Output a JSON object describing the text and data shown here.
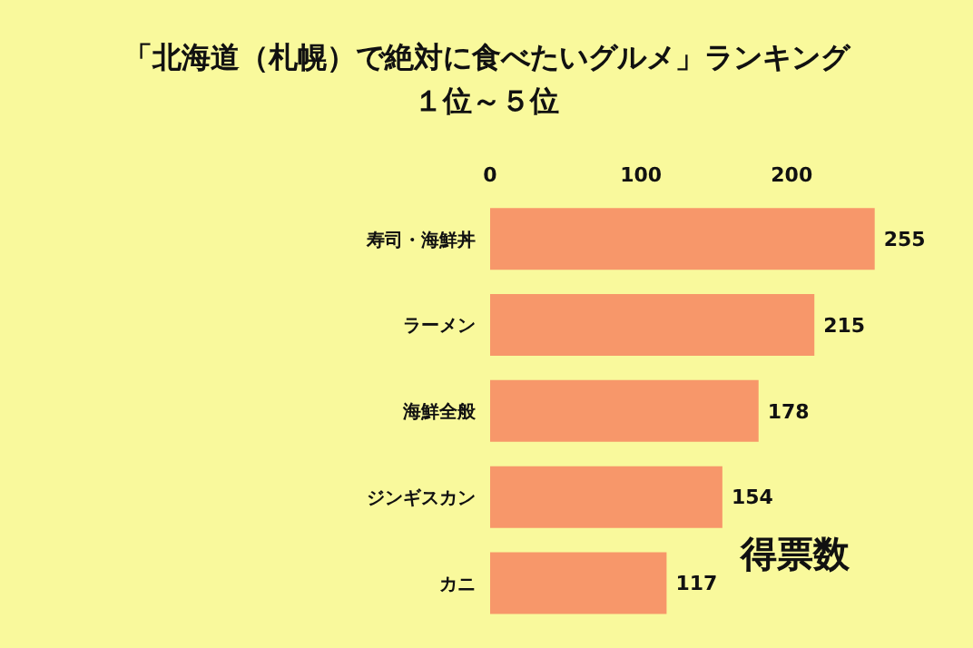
{
  "chart_data": {
    "type": "bar",
    "orientation": "horizontal",
    "title": "「北海道（札幌）で絶対に食べたいグルメ」ランキング",
    "subtitle": "１位～５位",
    "xlabel": "得票数",
    "categories": [
      "寿司・海鮮丼",
      "ラーメン",
      "海鮮全般",
      "ジンギスカン",
      "カニ"
    ],
    "values": [
      255,
      215,
      178,
      154,
      117
    ],
    "color": "#f7976a",
    "xlim": [
      0,
      260
    ],
    "xticks": [
      0,
      100,
      200
    ],
    "data_labels": true,
    "grid": false,
    "legend": false
  }
}
